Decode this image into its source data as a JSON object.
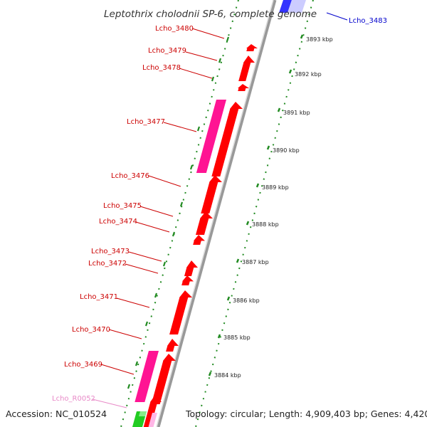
{
  "title": "Leptothrix cholodnii SP-6, complete genome",
  "footer": {
    "accession": "Accession: NC_010524",
    "topology": "Topology: circular; Length: 4,909,403 bp; Genes: 4,420"
  },
  "colors": {
    "cds": "#ff0000",
    "rna": "#ff1493",
    "rrna_label": "#e88ac8",
    "other_label": "#0000cc",
    "tick": "#228b22",
    "backbone": "#999999",
    "highlight": "#3333ff"
  },
  "kbp_labels": [
    "3893 kbp",
    "3892 kbp",
    "3891 kbp",
    "3890 kbp",
    "3889 kbp",
    "3888 kbp",
    "3887 kbp",
    "3886 kbp",
    "3885 kbp",
    "3884 kbp"
  ],
  "gene_labels": [
    {
      "text": "Lcho_3483",
      "color": "#0000cc"
    },
    {
      "text": "Lcho_3480",
      "color": "#cc0000"
    },
    {
      "text": "Lcho_3479",
      "color": "#cc0000"
    },
    {
      "text": "Lcho_3478",
      "color": "#cc0000"
    },
    {
      "text": "Lcho_3477",
      "color": "#cc0000"
    },
    {
      "text": "Lcho_3476",
      "color": "#cc0000"
    },
    {
      "text": "Lcho_3475",
      "color": "#cc0000"
    },
    {
      "text": "Lcho_3474",
      "color": "#cc0000"
    },
    {
      "text": "Lcho_3473",
      "color": "#cc0000"
    },
    {
      "text": "Lcho_3472",
      "color": "#cc0000"
    },
    {
      "text": "Lcho_3471",
      "color": "#cc0000"
    },
    {
      "text": "Lcho_3470",
      "color": "#cc0000"
    },
    {
      "text": "Lcho_3469",
      "color": "#cc0000"
    },
    {
      "text": "Lcho_R0052",
      "color": "#e88ac8"
    }
  ]
}
